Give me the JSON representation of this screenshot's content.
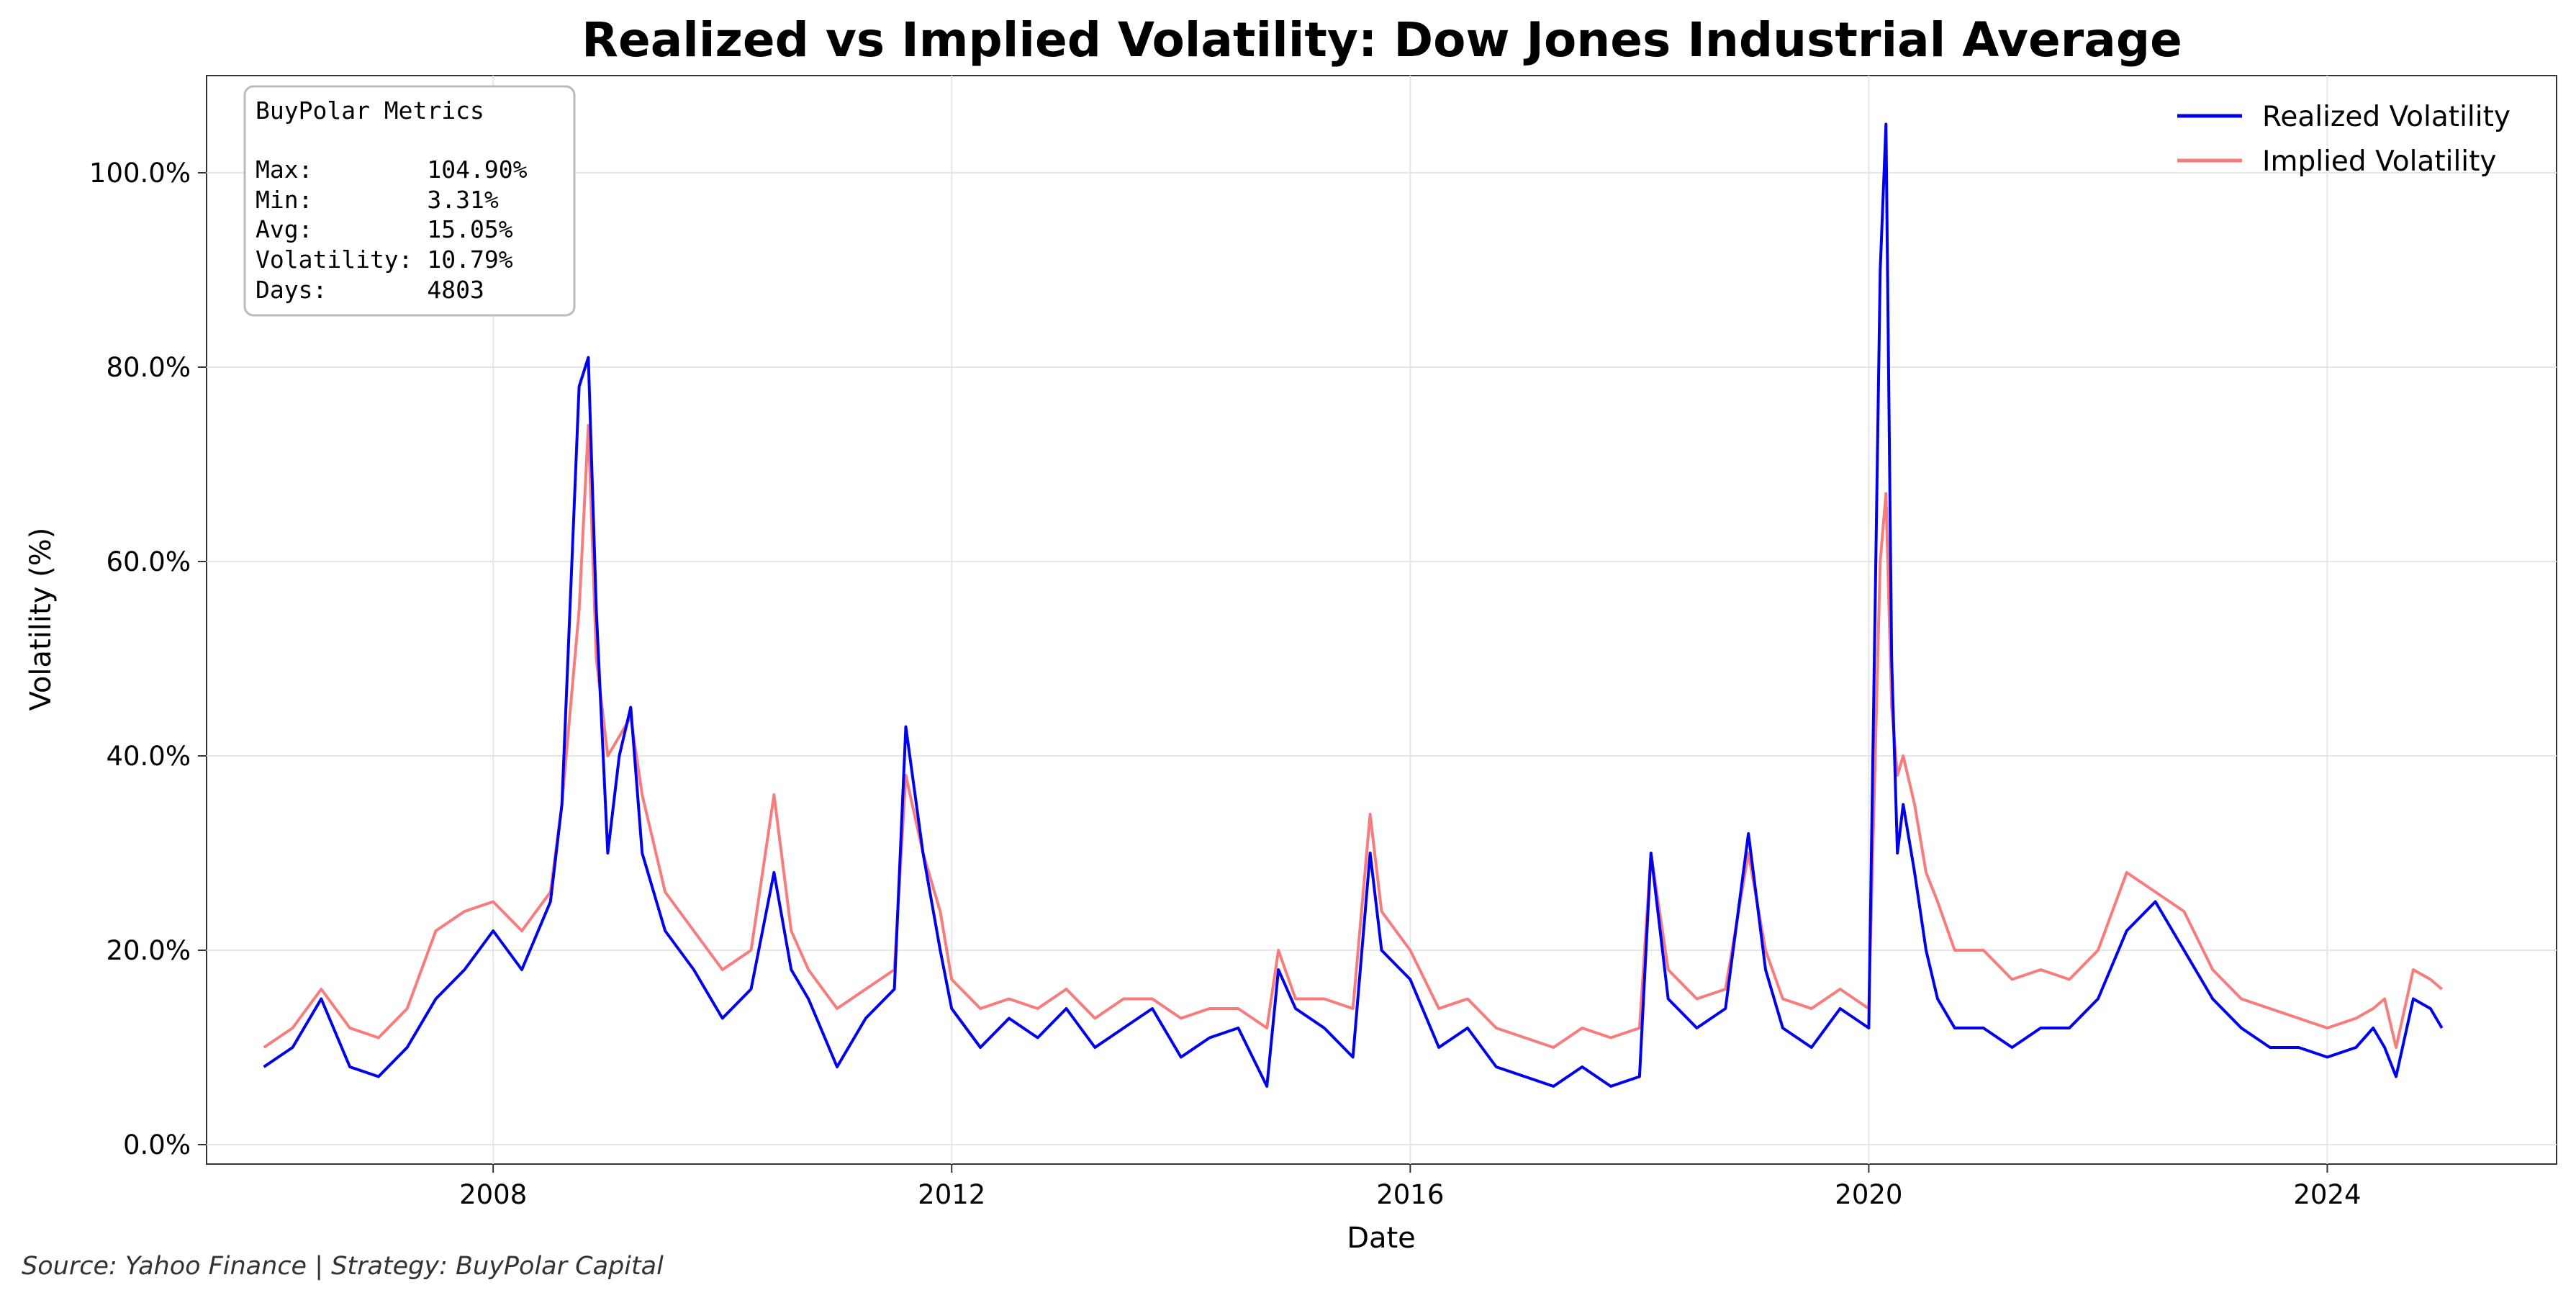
{
  "chart_data": {
    "type": "line",
    "title": "Realized vs Implied Volatility: Dow Jones Industrial Average",
    "xlabel": "Date",
    "ylabel": "Volatility (%)",
    "xlim": [
      2005.5,
      2026.0
    ],
    "ylim": [
      -2,
      110
    ],
    "x_ticks": [
      2008,
      2012,
      2016,
      2020,
      2024
    ],
    "x_tick_labels": [
      "2008",
      "2012",
      "2016",
      "2020",
      "2024"
    ],
    "y_ticks": [
      0,
      20,
      40,
      60,
      80,
      100
    ],
    "y_tick_labels": [
      "0.0%",
      "20.0%",
      "40.0%",
      "60.0%",
      "80.0%",
      "100.0%"
    ],
    "grid": true,
    "legend_position": "top-right",
    "series": [
      {
        "name": "Realized Volatility",
        "color": "#0000ee",
        "x": [
          2006.0,
          2006.25,
          2006.5,
          2006.75,
          2007.0,
          2007.25,
          2007.5,
          2007.75,
          2008.0,
          2008.25,
          2008.5,
          2008.6,
          2008.75,
          2008.83,
          2008.9,
          2009.0,
          2009.1,
          2009.2,
          2009.3,
          2009.5,
          2009.75,
          2010.0,
          2010.25,
          2010.45,
          2010.6,
          2010.75,
          2011.0,
          2011.25,
          2011.5,
          2011.6,
          2011.75,
          2011.9,
          2012.0,
          2012.25,
          2012.5,
          2012.75,
          2013.0,
          2013.25,
          2013.5,
          2013.75,
          2014.0,
          2014.25,
          2014.5,
          2014.75,
          2014.85,
          2015.0,
          2015.25,
          2015.5,
          2015.65,
          2015.75,
          2016.0,
          2016.25,
          2016.5,
          2016.75,
          2017.0,
          2017.25,
          2017.5,
          2017.75,
          2018.0,
          2018.1,
          2018.25,
          2018.5,
          2018.75,
          2018.95,
          2019.1,
          2019.25,
          2019.5,
          2019.75,
          2020.0,
          2020.1,
          2020.15,
          2020.2,
          2020.25,
          2020.3,
          2020.4,
          2020.5,
          2020.6,
          2020.75,
          2021.0,
          2021.25,
          2021.5,
          2021.75,
          2022.0,
          2022.25,
          2022.5,
          2022.75,
          2023.0,
          2023.25,
          2023.5,
          2023.75,
          2024.0,
          2024.25,
          2024.4,
          2024.5,
          2024.6,
          2024.75,
          2024.9,
          2025.0
        ],
        "values": [
          8,
          10,
          15,
          8,
          7,
          10,
          15,
          18,
          22,
          18,
          25,
          35,
          78,
          81,
          55,
          30,
          40,
          45,
          30,
          22,
          18,
          13,
          16,
          28,
          18,
          15,
          8,
          13,
          16,
          43,
          30,
          20,
          14,
          10,
          13,
          11,
          14,
          10,
          12,
          14,
          9,
          11,
          12,
          6,
          18,
          14,
          12,
          9,
          30,
          20,
          17,
          10,
          12,
          8,
          7,
          6,
          8,
          6,
          7,
          30,
          15,
          12,
          14,
          32,
          18,
          12,
          10,
          14,
          12,
          90,
          105,
          50,
          30,
          35,
          28,
          20,
          15,
          12,
          12,
          10,
          12,
          12,
          15,
          22,
          25,
          20,
          15,
          12,
          10,
          10,
          9,
          10,
          12,
          10,
          7,
          15,
          14,
          12
        ]
      },
      {
        "name": "Implied Volatility",
        "color": "#f87c7c",
        "x": [
          2006.0,
          2006.25,
          2006.5,
          2006.75,
          2007.0,
          2007.25,
          2007.5,
          2007.75,
          2008.0,
          2008.25,
          2008.5,
          2008.6,
          2008.75,
          2008.83,
          2008.9,
          2009.0,
          2009.1,
          2009.2,
          2009.3,
          2009.5,
          2009.75,
          2010.0,
          2010.25,
          2010.45,
          2010.6,
          2010.75,
          2011.0,
          2011.25,
          2011.5,
          2011.6,
          2011.75,
          2011.9,
          2012.0,
          2012.25,
          2012.5,
          2012.75,
          2013.0,
          2013.25,
          2013.5,
          2013.75,
          2014.0,
          2014.25,
          2014.5,
          2014.75,
          2014.85,
          2015.0,
          2015.25,
          2015.5,
          2015.65,
          2015.75,
          2016.0,
          2016.25,
          2016.5,
          2016.75,
          2017.0,
          2017.25,
          2017.5,
          2017.75,
          2018.0,
          2018.1,
          2018.25,
          2018.5,
          2018.75,
          2018.95,
          2019.1,
          2019.25,
          2019.5,
          2019.75,
          2020.0,
          2020.1,
          2020.15,
          2020.2,
          2020.25,
          2020.3,
          2020.4,
          2020.5,
          2020.6,
          2020.75,
          2021.0,
          2021.25,
          2021.5,
          2021.75,
          2022.0,
          2022.25,
          2022.5,
          2022.75,
          2023.0,
          2023.25,
          2023.5,
          2023.75,
          2024.0,
          2024.25,
          2024.4,
          2024.5,
          2024.6,
          2024.75,
          2024.9,
          2025.0
        ],
        "values": [
          10,
          12,
          16,
          12,
          11,
          14,
          22,
          24,
          25,
          22,
          26,
          35,
          55,
          74,
          50,
          40,
          42,
          44,
          36,
          26,
          22,
          18,
          20,
          36,
          22,
          18,
          14,
          16,
          18,
          38,
          30,
          24,
          17,
          14,
          15,
          14,
          16,
          13,
          15,
          15,
          13,
          14,
          14,
          12,
          20,
          15,
          15,
          14,
          34,
          24,
          20,
          14,
          15,
          12,
          11,
          10,
          12,
          11,
          12,
          30,
          18,
          15,
          16,
          30,
          20,
          15,
          14,
          16,
          14,
          60,
          67,
          45,
          38,
          40,
          35,
          28,
          25,
          20,
          20,
          17,
          18,
          17,
          20,
          28,
          26,
          24,
          18,
          15,
          14,
          13,
          12,
          13,
          14,
          15,
          10,
          18,
          17,
          16
        ]
      }
    ]
  },
  "metrics_box": {
    "title": "BuyPolar Metrics",
    "lines": [
      "Max:        104.90%",
      "Min:        3.31%",
      "Avg:        15.05%",
      "Volatility: 10.79%",
      "Days:       4803"
    ]
  },
  "footer": {
    "source": "Source: Yahoo Finance | Strategy: BuyPolar Capital"
  }
}
